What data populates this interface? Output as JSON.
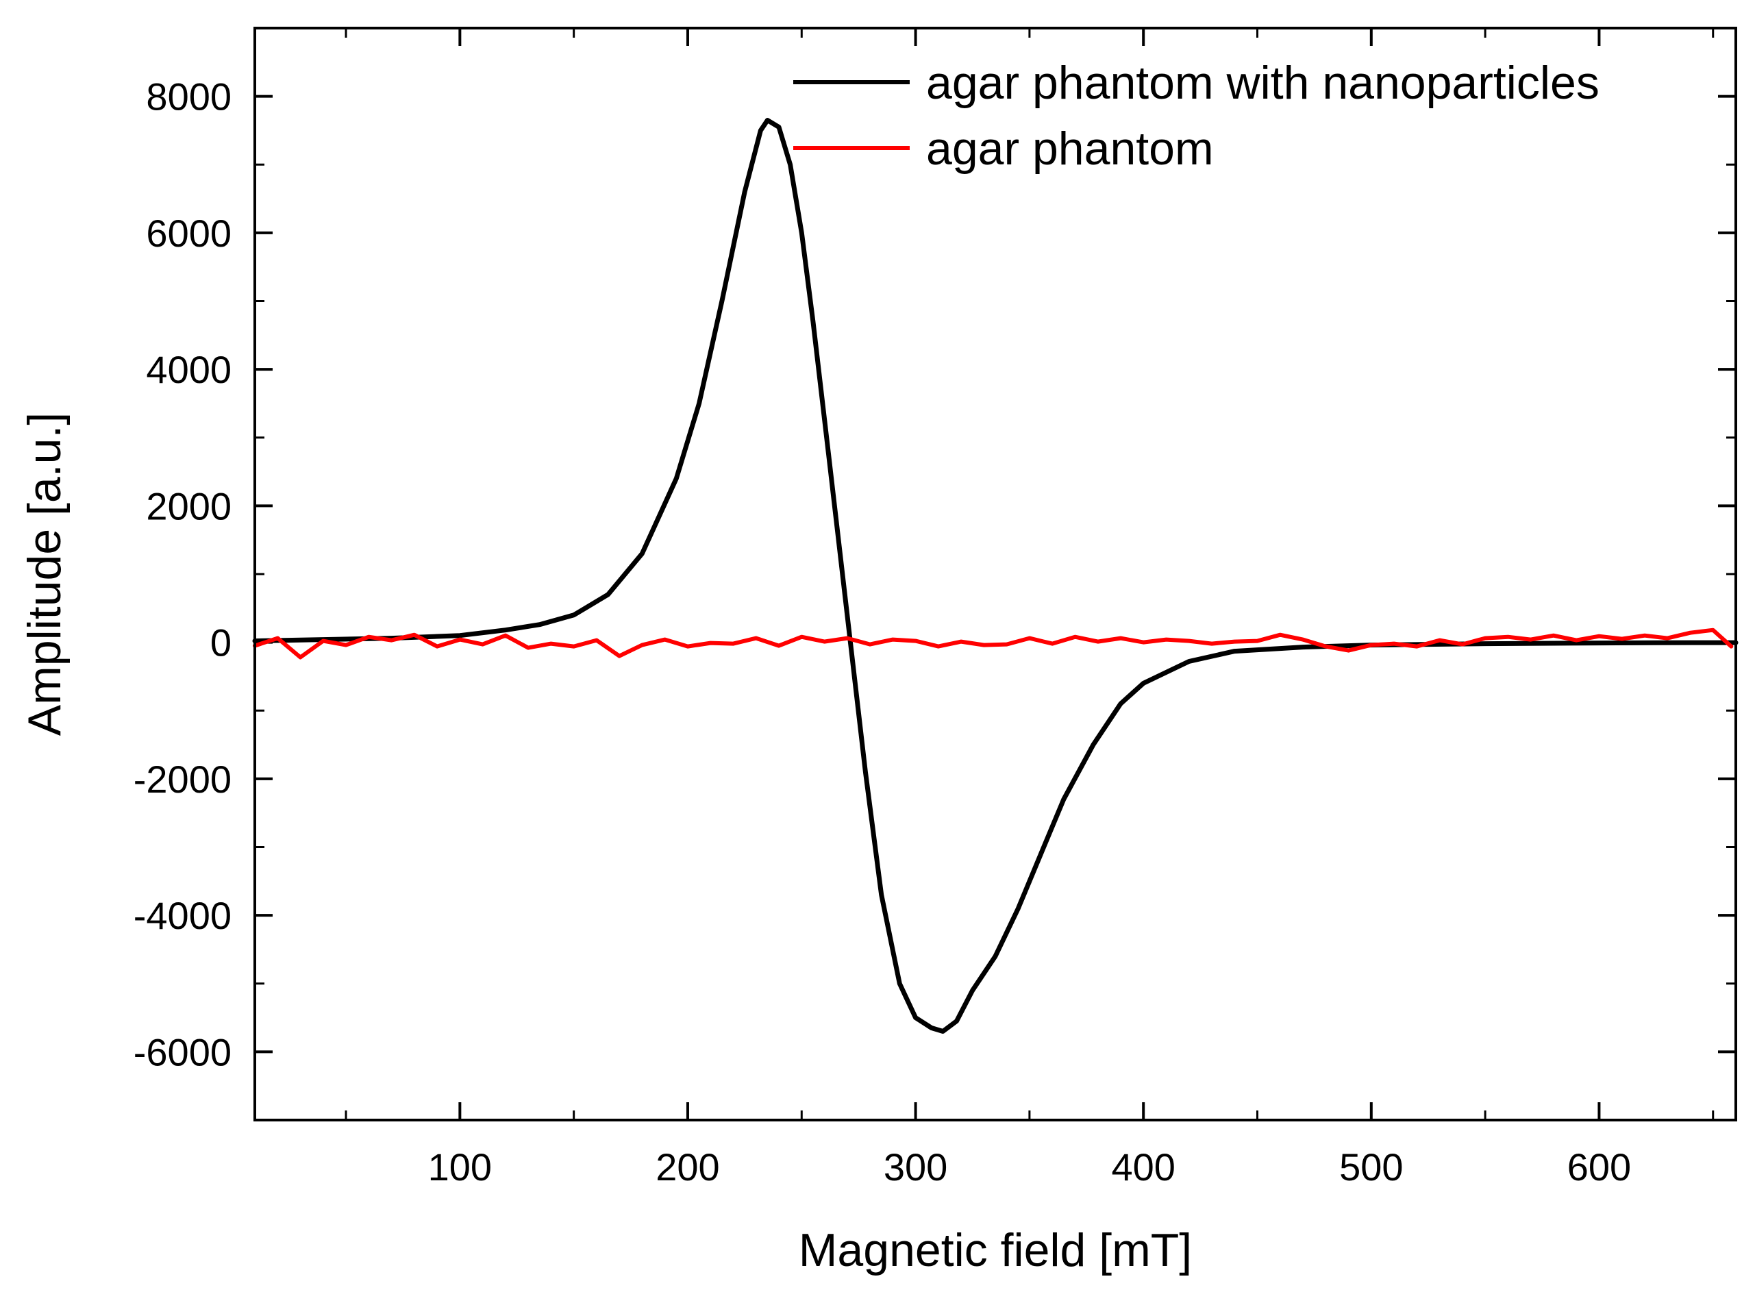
{
  "chart_data": {
    "type": "line",
    "title": "",
    "xlabel": "Magnetic field [mT]",
    "ylabel": "Amplitude [a.u.]",
    "xlim": [
      10,
      660
    ],
    "ylim": [
      -7000,
      9000
    ],
    "x_ticks": [
      100,
      200,
      300,
      400,
      500,
      600
    ],
    "x_tick_labels": [
      "100",
      "200",
      "300",
      "400",
      "500",
      "600"
    ],
    "y_ticks": [
      -6000,
      -4000,
      -2000,
      0,
      2000,
      4000,
      6000,
      8000
    ],
    "y_tick_labels": [
      "-6000",
      "-4000",
      "-2000",
      "0",
      "2000",
      "4000",
      "6000",
      "8000"
    ],
    "grid": false,
    "legend_position": "top-right",
    "series": [
      {
        "name": "agar phantom with nanoparticles",
        "color": "#000000",
        "x": [
          10,
          40,
          70,
          100,
          120,
          135,
          150,
          165,
          180,
          195,
          205,
          215,
          225,
          232,
          235,
          240,
          245,
          250,
          255,
          262,
          270,
          278,
          285,
          293,
          300,
          307,
          312,
          318,
          325,
          335,
          345,
          355,
          365,
          378,
          390,
          400,
          420,
          440,
          470,
          500,
          550,
          600,
          640,
          660
        ],
        "y": [
          20,
          40,
          60,
          100,
          180,
          260,
          400,
          700,
          1300,
          2400,
          3500,
          5000,
          6600,
          7500,
          7650,
          7550,
          7000,
          6000,
          4700,
          2700,
          400,
          -1900,
          -3700,
          -5000,
          -5500,
          -5650,
          -5700,
          -5550,
          -5100,
          -4600,
          -3900,
          -3100,
          -2300,
          -1500,
          -900,
          -600,
          -280,
          -130,
          -70,
          -40,
          -20,
          -10,
          -5,
          -5
        ]
      },
      {
        "name": "agar phantom",
        "color": "#ff0000",
        "x": [
          10,
          20,
          30,
          40,
          50,
          60,
          70,
          80,
          90,
          100,
          110,
          120,
          130,
          140,
          150,
          160,
          170,
          180,
          190,
          200,
          210,
          220,
          230,
          240,
          250,
          260,
          270,
          280,
          290,
          300,
          310,
          320,
          330,
          340,
          350,
          360,
          370,
          380,
          390,
          400,
          410,
          420,
          430,
          440,
          450,
          460,
          470,
          480,
          490,
          500,
          510,
          520,
          530,
          540,
          550,
          560,
          570,
          580,
          590,
          600,
          610,
          620,
          630,
          640,
          650,
          658
        ],
        "y": [
          -50,
          60,
          -220,
          20,
          -40,
          80,
          30,
          110,
          -60,
          40,
          -30,
          100,
          -80,
          -20,
          -60,
          30,
          -200,
          -40,
          40,
          -60,
          -10,
          -20,
          60,
          -50,
          80,
          10,
          60,
          -30,
          40,
          20,
          -60,
          10,
          -40,
          -30,
          60,
          -20,
          80,
          10,
          60,
          0,
          40,
          20,
          -20,
          10,
          20,
          110,
          40,
          -60,
          -120,
          -40,
          -20,
          -60,
          30,
          -30,
          60,
          80,
          40,
          100,
          30,
          90,
          50,
          100,
          60,
          140,
          180,
          -60
        ]
      }
    ]
  }
}
